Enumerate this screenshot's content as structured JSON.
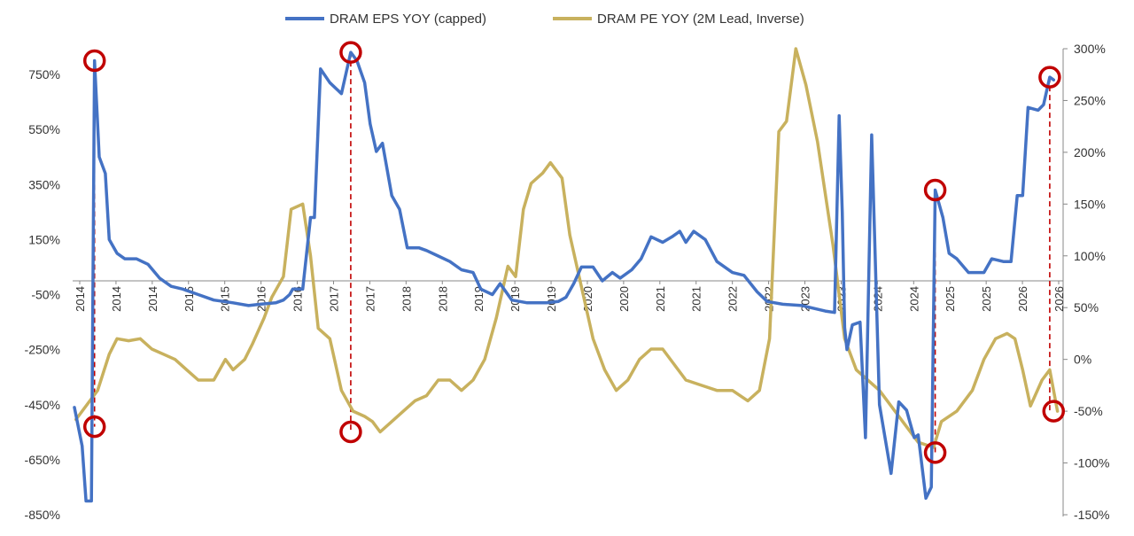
{
  "chart_data": {
    "type": "line",
    "legend": {
      "placement": "top-center"
    },
    "grid": false,
    "series": [
      {
        "name": "DRAM EPS YOY (capped)",
        "color": "#4472c4",
        "axis": "left",
        "points": [
          [
            2013.9,
            -460
          ],
          [
            2014.0,
            -600
          ],
          [
            2014.05,
            -800
          ],
          [
            2014.12,
            -800
          ],
          [
            2014.16,
            800
          ],
          [
            2014.22,
            450
          ],
          [
            2014.3,
            390
          ],
          [
            2014.35,
            150
          ],
          [
            2014.45,
            100
          ],
          [
            2014.55,
            80
          ],
          [
            2014.7,
            80
          ],
          [
            2014.85,
            60
          ],
          [
            2015.0,
            10
          ],
          [
            2015.15,
            -20
          ],
          [
            2015.3,
            -30
          ],
          [
            2015.5,
            -50
          ],
          [
            2015.7,
            -70
          ],
          [
            2015.95,
            -80
          ],
          [
            2016.15,
            -90
          ],
          [
            2016.3,
            -85
          ],
          [
            2016.5,
            -80
          ],
          [
            2016.6,
            -70
          ],
          [
            2016.68,
            -50
          ],
          [
            2016.72,
            -30
          ],
          [
            2016.85,
            -30
          ],
          [
            2016.95,
            230
          ],
          [
            2017.0,
            230
          ],
          [
            2017.08,
            770
          ],
          [
            2017.2,
            720
          ],
          [
            2017.35,
            680
          ],
          [
            2017.47,
            830
          ],
          [
            2017.55,
            800
          ],
          [
            2017.65,
            720
          ],
          [
            2017.72,
            570
          ],
          [
            2017.8,
            470
          ],
          [
            2017.88,
            500
          ],
          [
            2018.0,
            310
          ],
          [
            2018.1,
            260
          ],
          [
            2018.2,
            120
          ],
          [
            2018.35,
            120
          ],
          [
            2018.45,
            110
          ],
          [
            2018.6,
            90
          ],
          [
            2018.75,
            70
          ],
          [
            2018.9,
            40
          ],
          [
            2019.05,
            30
          ],
          [
            2019.15,
            -30
          ],
          [
            2019.3,
            -50
          ],
          [
            2019.4,
            -10
          ],
          [
            2019.55,
            -70
          ],
          [
            2019.75,
            -80
          ],
          [
            2020.0,
            -80
          ],
          [
            2020.15,
            -75
          ],
          [
            2020.25,
            -60
          ],
          [
            2020.35,
            -10
          ],
          [
            2020.45,
            50
          ],
          [
            2020.6,
            50
          ],
          [
            2020.72,
            0
          ],
          [
            2020.85,
            30
          ],
          [
            2020.95,
            10
          ],
          [
            2021.1,
            40
          ],
          [
            2021.22,
            80
          ],
          [
            2021.35,
            160
          ],
          [
            2021.5,
            140
          ],
          [
            2021.62,
            160
          ],
          [
            2021.72,
            180
          ],
          [
            2021.8,
            140
          ],
          [
            2021.9,
            180
          ],
          [
            2022.05,
            150
          ],
          [
            2022.2,
            70
          ],
          [
            2022.4,
            30
          ],
          [
            2022.55,
            20
          ],
          [
            2022.72,
            -40
          ],
          [
            2022.85,
            -75
          ],
          [
            2023.05,
            -85
          ],
          [
            2023.3,
            -90
          ],
          [
            2023.6,
            -110
          ],
          [
            2023.72,
            -115
          ],
          [
            2023.78,
            600
          ],
          [
            2023.82,
            250
          ],
          [
            2023.85,
            -170
          ],
          [
            2023.88,
            -250
          ],
          [
            2023.95,
            -160
          ],
          [
            2024.05,
            -150
          ],
          [
            2024.12,
            -570
          ],
          [
            2024.2,
            530
          ],
          [
            2024.3,
            -450
          ],
          [
            2024.45,
            -700
          ],
          [
            2024.55,
            -440
          ],
          [
            2024.65,
            -470
          ],
          [
            2024.7,
            -520
          ],
          [
            2024.75,
            -570
          ],
          [
            2024.8,
            -560
          ],
          [
            2024.9,
            -790
          ],
          [
            2024.97,
            -750
          ],
          [
            2025.02,
            330
          ],
          [
            2025.12,
            230
          ],
          [
            2025.2,
            100
          ],
          [
            2025.3,
            80
          ],
          [
            2025.45,
            30
          ],
          [
            2025.55,
            30
          ],
          [
            2025.65,
            30
          ],
          [
            2025.75,
            80
          ],
          [
            2025.9,
            70
          ],
          [
            2026.0,
            70
          ],
          [
            2026.08,
            310
          ],
          [
            2026.15,
            310
          ],
          [
            2026.22,
            630
          ],
          [
            2026.35,
            620
          ],
          [
            2026.42,
            640
          ],
          [
            2026.5,
            740
          ],
          [
            2026.55,
            730
          ]
        ]
      },
      {
        "name": "DRAM PE YOY (2M Lead, Inverse)",
        "color": "#c8b15e",
        "axis": "right",
        "points": [
          [
            2013.92,
            -58
          ],
          [
            2014.2,
            -30
          ],
          [
            2014.35,
            5
          ],
          [
            2014.45,
            20
          ],
          [
            2014.6,
            18
          ],
          [
            2014.75,
            20
          ],
          [
            2014.9,
            10
          ],
          [
            2015.05,
            5
          ],
          [
            2015.2,
            0
          ],
          [
            2015.35,
            -10
          ],
          [
            2015.5,
            -20
          ],
          [
            2015.7,
            -20
          ],
          [
            2015.85,
            0
          ],
          [
            2015.95,
            -10
          ],
          [
            2016.1,
            0
          ],
          [
            2016.2,
            15
          ],
          [
            2016.35,
            40
          ],
          [
            2016.45,
            60
          ],
          [
            2016.6,
            80
          ],
          [
            2016.7,
            145
          ],
          [
            2016.85,
            150
          ],
          [
            2016.95,
            100
          ],
          [
            2017.05,
            30
          ],
          [
            2017.2,
            20
          ],
          [
            2017.35,
            -30
          ],
          [
            2017.5,
            -50
          ],
          [
            2017.65,
            -55
          ],
          [
            2017.75,
            -60
          ],
          [
            2017.85,
            -70
          ],
          [
            2018.0,
            -60
          ],
          [
            2018.15,
            -50
          ],
          [
            2018.3,
            -40
          ],
          [
            2018.45,
            -35
          ],
          [
            2018.6,
            -20
          ],
          [
            2018.75,
            -20
          ],
          [
            2018.9,
            -30
          ],
          [
            2019.05,
            -20
          ],
          [
            2019.2,
            0
          ],
          [
            2019.35,
            40
          ],
          [
            2019.5,
            90
          ],
          [
            2019.6,
            80
          ],
          [
            2019.7,
            145
          ],
          [
            2019.8,
            170
          ],
          [
            2019.95,
            180
          ],
          [
            2020.05,
            190
          ],
          [
            2020.2,
            175
          ],
          [
            2020.3,
            120
          ],
          [
            2020.45,
            70
          ],
          [
            2020.6,
            20
          ],
          [
            2020.75,
            -10
          ],
          [
            2020.9,
            -30
          ],
          [
            2021.05,
            -20
          ],
          [
            2021.2,
            0
          ],
          [
            2021.35,
            10
          ],
          [
            2021.5,
            10
          ],
          [
            2021.65,
            -5
          ],
          [
            2021.8,
            -20
          ],
          [
            2022.0,
            -25
          ],
          [
            2022.2,
            -30
          ],
          [
            2022.4,
            -30
          ],
          [
            2022.6,
            -40
          ],
          [
            2022.75,
            -30
          ],
          [
            2022.88,
            20
          ],
          [
            2023.0,
            220
          ],
          [
            2023.1,
            230
          ],
          [
            2023.22,
            300
          ],
          [
            2023.35,
            265
          ],
          [
            2023.5,
            210
          ],
          [
            2023.7,
            110
          ],
          [
            2023.85,
            20
          ],
          [
            2024.0,
            -10
          ],
          [
            2024.3,
            -30
          ],
          [
            2024.6,
            -60
          ],
          [
            2024.8,
            -80
          ],
          [
            2025.0,
            -85
          ],
          [
            2025.1,
            -60
          ],
          [
            2025.3,
            -50
          ],
          [
            2025.5,
            -30
          ],
          [
            2025.65,
            0
          ],
          [
            2025.8,
            20
          ],
          [
            2025.95,
            25
          ],
          [
            2026.05,
            20
          ],
          [
            2026.15,
            -10
          ],
          [
            2026.25,
            -45
          ],
          [
            2026.4,
            -20
          ],
          [
            2026.5,
            -10
          ],
          [
            2026.6,
            -50
          ]
        ]
      }
    ],
    "y_left": {
      "range": [
        -850,
        850
      ],
      "ticks": [
        -850,
        -650,
        -450,
        -250,
        -50,
        150,
        350,
        550,
        750
      ],
      "tick_labels": [
        "-850%",
        "-650%",
        "-450%",
        "-250%",
        "-50%",
        "150%",
        "350%",
        "550%",
        "750%"
      ]
    },
    "y_right": {
      "range": [
        -150,
        300
      ],
      "ticks": [
        -150,
        -100,
        -50,
        0,
        50,
        100,
        150,
        200,
        250,
        300
      ],
      "tick_labels": [
        "-150%",
        "-100%",
        "-50%",
        "0%",
        "50%",
        "100%",
        "150%",
        "200%",
        "250%",
        "300%"
      ]
    },
    "x_axis": {
      "range": [
        2013.9,
        2026.65
      ],
      "baseline_value_left": 0,
      "tick_labels": [
        "2014",
        "2014",
        "2014",
        "2015",
        "2015",
        "2016",
        "2016",
        "2017",
        "2017",
        "2018",
        "2018",
        "2019",
        "2019",
        "2019",
        "2020",
        "2020",
        "2021",
        "2021",
        "2022",
        "2022",
        "2023",
        "2023",
        "2024",
        "2024",
        "2025",
        "2025",
        "2026",
        "2026"
      ]
    },
    "markers": [
      {
        "x": 2014.16,
        "y": 800,
        "axis": "left"
      },
      {
        "x": 2014.16,
        "y": -65,
        "axis": "right"
      },
      {
        "x": 2017.47,
        "y": 830,
        "axis": "left"
      },
      {
        "x": 2017.47,
        "y": -70,
        "axis": "right"
      },
      {
        "x": 2025.02,
        "y": 330,
        "axis": "left"
      },
      {
        "x": 2025.02,
        "y": -90,
        "axis": "right"
      },
      {
        "x": 2026.5,
        "y": 740,
        "axis": "left"
      },
      {
        "x": 2026.55,
        "y": -50,
        "axis": "right"
      }
    ],
    "marker_color": "#c00000",
    "axis_color": "#888888"
  }
}
